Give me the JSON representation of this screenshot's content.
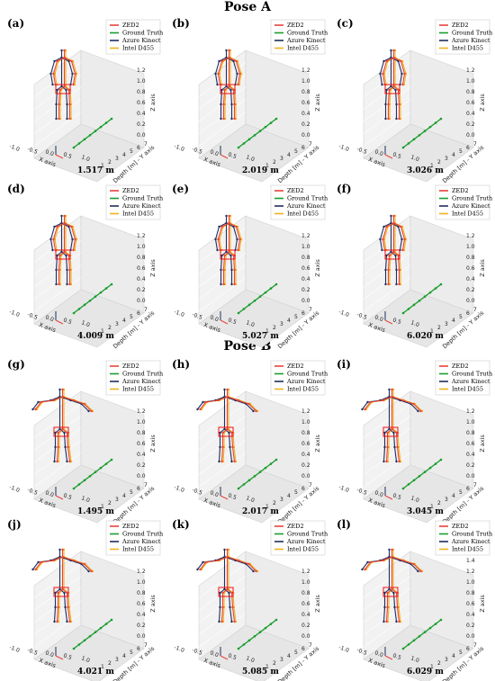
{
  "sections": [
    "Pose A",
    "Pose B"
  ],
  "legend": [
    {
      "label": "ZED2",
      "color": "#e8433a"
    },
    {
      "label": "Ground Truth",
      "color": "#1a9e2e"
    },
    {
      "label": "Azure Kinect",
      "color": "#1f2f5e"
    },
    {
      "label": "Intel D455",
      "color": "#f2b21c"
    }
  ],
  "axes": {
    "x_label": "X axis",
    "y_label": "Depth [m] - Y axis",
    "z_label": "Z axis",
    "x_ticks": [
      "-1.0",
      "-0.5",
      "0.0",
      "0.5",
      "1.0"
    ],
    "y_ticks": [
      "1",
      "2",
      "3",
      "4",
      "5",
      "6",
      "7"
    ],
    "z_ticks": [
      "0.0",
      "0.2",
      "0.4",
      "0.6",
      "0.8",
      "1.0",
      "1.2"
    ],
    "z_ticks_alt": [
      "0.0",
      "0.2",
      "0.4",
      "0.6",
      "0.8",
      "1.0",
      "1.2",
      "1.4"
    ]
  },
  "chart_data": [
    {
      "type": "scatter",
      "panel": "(a)",
      "pose": "Pose A",
      "distance": "1.517 m"
    },
    {
      "type": "scatter",
      "panel": "(b)",
      "pose": "Pose A",
      "distance": "2.019 m"
    },
    {
      "type": "scatter",
      "panel": "(c)",
      "pose": "Pose A",
      "distance": "3.026 m"
    },
    {
      "type": "scatter",
      "panel": "(d)",
      "pose": "Pose A",
      "distance": "4.009 m"
    },
    {
      "type": "scatter",
      "panel": "(e)",
      "pose": "Pose A",
      "distance": "5.027 m"
    },
    {
      "type": "scatter",
      "panel": "(f)",
      "pose": "Pose A",
      "distance": "6.020 m"
    },
    {
      "type": "scatter",
      "panel": "(g)",
      "pose": "Pose B",
      "distance": "1.495 m"
    },
    {
      "type": "scatter",
      "panel": "(h)",
      "pose": "Pose B",
      "distance": "2.017 m"
    },
    {
      "type": "scatter",
      "panel": "(i)",
      "pose": "Pose B",
      "distance": "3.045 m"
    },
    {
      "type": "scatter",
      "panel": "(j)",
      "pose": "Pose B",
      "distance": "4.021 m"
    },
    {
      "type": "scatter",
      "panel": "(k)",
      "pose": "Pose B",
      "distance": "5.085 m"
    },
    {
      "type": "scatter",
      "panel": "(l)",
      "pose": "Pose B",
      "distance": "6.029 m"
    }
  ]
}
